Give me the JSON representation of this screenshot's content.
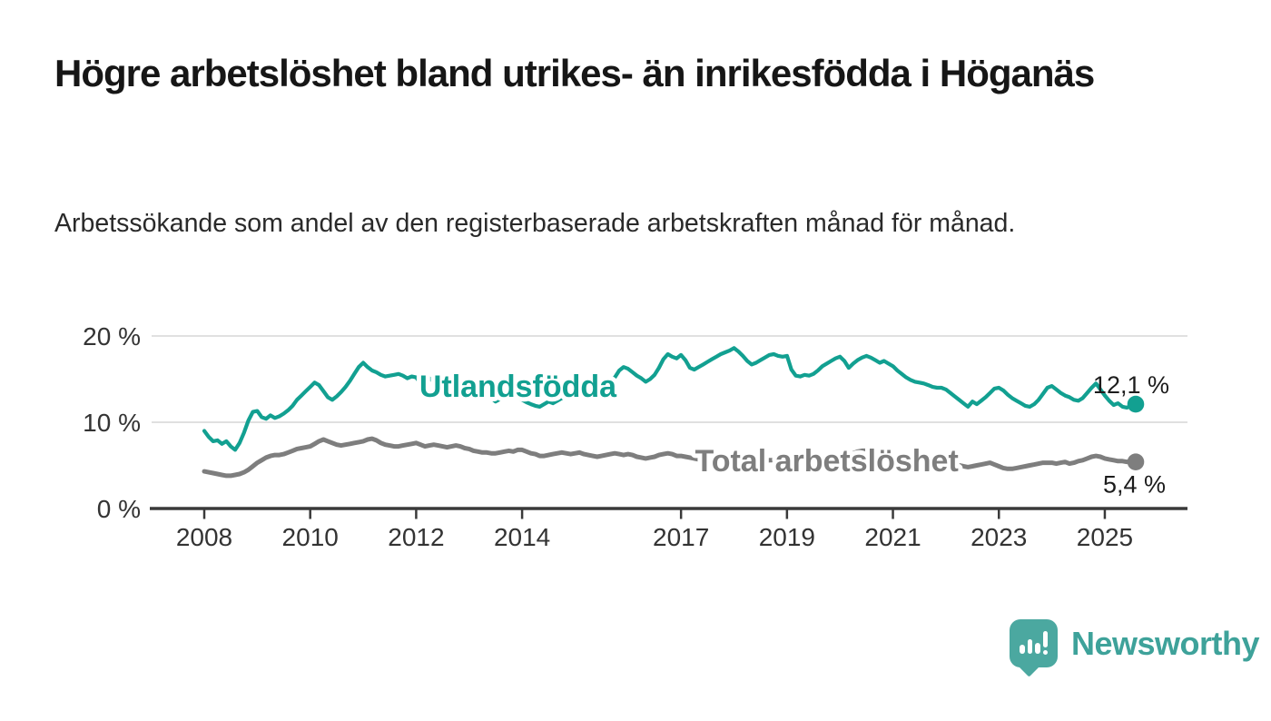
{
  "page": {
    "title": "Högre arbetslöshet bland utrikes- än inrikesfödda i Höganäs",
    "subtitle": "Arbetssökande som andel av den registerbaserade arbetskraften månad för månad."
  },
  "footer": {
    "brand": "Newsworthy",
    "logo_icon": "speech-bubble-bar-chart-icon"
  },
  "chart_data": {
    "type": "line",
    "title": "Högre arbetslöshet bland utrikes- än inrikesfödda i Höganäs",
    "subtitle": "Arbetssökande som andel av den registerbaserade arbetskraften månad för månad.",
    "frequency": "monthly",
    "x_start": "2008-01",
    "x_end": "2025-08",
    "x_tick_labels": [
      "2008",
      "2010",
      "2012",
      "2014",
      "2017",
      "2019",
      "2021",
      "2023",
      "2025"
    ],
    "y_ticks": [
      0,
      10,
      20
    ],
    "y_tick_labels": [
      "0 %",
      "10 %",
      "20 %"
    ],
    "ylim": [
      0,
      21
    ],
    "grid": "horizontal-only",
    "legend": "inline-labels-on-lines",
    "colors": {
      "accent_teal": "#12A091",
      "neutral_gray": "#7E7E7E",
      "gridline": "#E0E0E0",
      "axis": "#3A3A3A",
      "value_label": "#1c1c1c"
    },
    "series": [
      {
        "name": "Utlandsfödda",
        "color": "#12A091",
        "stroke_width": 4.2,
        "label_anchor": {
          "year": 2013.92,
          "value": 14.1
        },
        "end_label": {
          "text": "12,1 %",
          "dx": 37,
          "dy": -12
        },
        "end_value": 12.1,
        "values": [
          9.0,
          8.3,
          7.8,
          7.9,
          7.5,
          7.8,
          7.2,
          6.8,
          7.6,
          8.8,
          10.2,
          11.2,
          11.3,
          10.6,
          10.4,
          10.8,
          10.5,
          10.7,
          11.0,
          11.4,
          11.9,
          12.6,
          13.1,
          13.6,
          14.1,
          14.6,
          14.3,
          13.6,
          12.9,
          12.6,
          13.0,
          13.5,
          14.1,
          14.8,
          15.6,
          16.4,
          16.9,
          16.4,
          16.0,
          15.8,
          15.5,
          15.3,
          15.4,
          15.5,
          15.6,
          15.4,
          15.1,
          15.3,
          15.2,
          14.5,
          14.8,
          15.1,
          14.7,
          14.9,
          14.6,
          14.3,
          14.6,
          14.2,
          14.4,
          14.5,
          14.3,
          14.0,
          13.7,
          13.4,
          13.1,
          12.8,
          12.4,
          12.7,
          13.0,
          13.2,
          13.0,
          12.8,
          12.6,
          12.3,
          12.1,
          11.9,
          11.8,
          12.1,
          12.4,
          12.2,
          12.5,
          12.8,
          13.1,
          13.3,
          13.5,
          13.3,
          13.6,
          13.8,
          14.0,
          13.9,
          14.2,
          14.4,
          14.6,
          15.2,
          16.0,
          16.4,
          16.2,
          15.8,
          15.4,
          15.1,
          14.7,
          15.0,
          15.5,
          16.3,
          17.3,
          17.9,
          17.6,
          17.4,
          17.8,
          17.2,
          16.3,
          16.1,
          16.4,
          16.7,
          17.0,
          17.3,
          17.6,
          17.9,
          18.1,
          18.3,
          18.6,
          18.2,
          17.7,
          17.1,
          16.7,
          16.9,
          17.2,
          17.5,
          17.8,
          17.9,
          17.7,
          17.6,
          17.7,
          16.1,
          15.4,
          15.3,
          15.5,
          15.4,
          15.6,
          16.0,
          16.5,
          16.8,
          17.1,
          17.4,
          17.6,
          17.1,
          16.3,
          16.8,
          17.2,
          17.5,
          17.7,
          17.5,
          17.2,
          16.9,
          17.1,
          16.8,
          16.5,
          16.0,
          15.6,
          15.2,
          14.9,
          14.7,
          14.6,
          14.5,
          14.3,
          14.1,
          14.0,
          14.0,
          13.8,
          13.4,
          13.0,
          12.6,
          12.2,
          11.8,
          12.4,
          12.1,
          12.5,
          12.9,
          13.4,
          13.9,
          14.0,
          13.7,
          13.2,
          12.8,
          12.5,
          12.2,
          11.9,
          11.8,
          12.1,
          12.6,
          13.3,
          14.0,
          14.2,
          13.8,
          13.4,
          13.1,
          12.9,
          12.6,
          12.5,
          12.8,
          13.4,
          14.0,
          14.5,
          13.8,
          13.1,
          12.5,
          12.0,
          12.2,
          11.8,
          11.7,
          11.9,
          12.1
        ]
      },
      {
        "name": "Total arbetslöshet",
        "color": "#7E7E7E",
        "stroke_width": 5,
        "label_anchor": {
          "year": 2019.75,
          "value": 5.45
        },
        "end_label": {
          "text": "5,4 %",
          "dx": 33,
          "dy": 34
        },
        "end_value": 5.4,
        "values": [
          4.3,
          4.2,
          4.1,
          4.0,
          3.9,
          3.8,
          3.8,
          3.9,
          4.0,
          4.2,
          4.5,
          4.9,
          5.3,
          5.6,
          5.9,
          6.1,
          6.2,
          6.2,
          6.3,
          6.5,
          6.7,
          6.9,
          7.0,
          7.1,
          7.2,
          7.5,
          7.8,
          8.0,
          7.8,
          7.6,
          7.4,
          7.3,
          7.4,
          7.5,
          7.6,
          7.7,
          7.8,
          8.0,
          8.1,
          7.9,
          7.6,
          7.4,
          7.3,
          7.2,
          7.2,
          7.3,
          7.4,
          7.5,
          7.6,
          7.4,
          7.2,
          7.3,
          7.4,
          7.3,
          7.2,
          7.1,
          7.2,
          7.3,
          7.2,
          7.0,
          6.9,
          6.7,
          6.6,
          6.5,
          6.5,
          6.4,
          6.4,
          6.5,
          6.6,
          6.7,
          6.6,
          6.8,
          6.8,
          6.6,
          6.4,
          6.3,
          6.1,
          6.1,
          6.2,
          6.3,
          6.4,
          6.5,
          6.4,
          6.3,
          6.4,
          6.5,
          6.3,
          6.2,
          6.1,
          6.0,
          6.1,
          6.2,
          6.3,
          6.4,
          6.3,
          6.2,
          6.3,
          6.2,
          6.0,
          5.9,
          5.8,
          5.9,
          6.0,
          6.2,
          6.3,
          6.4,
          6.3,
          6.1,
          6.1,
          6.0,
          5.9,
          5.8,
          5.7,
          5.6,
          5.7,
          5.8,
          5.9,
          6.0,
          5.9,
          5.8,
          5.8,
          5.7,
          5.6,
          5.5,
          5.4,
          5.3,
          5.4,
          5.5,
          5.6,
          5.6,
          5.5,
          5.4,
          5.4,
          5.3,
          5.2,
          5.1,
          5.1,
          5.0,
          5.1,
          5.2,
          5.3,
          5.4,
          5.5,
          5.6,
          5.7,
          5.9,
          6.1,
          6.4,
          6.6,
          6.7,
          6.7,
          6.6,
          6.5,
          6.3,
          6.2,
          6.1,
          6.0,
          5.9,
          5.8,
          5.7,
          5.6,
          5.5,
          5.4,
          5.3,
          5.3,
          5.2,
          5.2,
          5.1,
          5.1,
          5.0,
          4.9,
          5.0,
          4.9,
          4.8,
          4.9,
          5.0,
          5.1,
          5.2,
          5.3,
          5.1,
          4.9,
          4.7,
          4.6,
          4.6,
          4.7,
          4.8,
          4.9,
          5.0,
          5.1,
          5.2,
          5.3,
          5.3,
          5.3,
          5.2,
          5.3,
          5.4,
          5.2,
          5.3,
          5.5,
          5.6,
          5.8,
          6.0,
          6.1,
          6.0,
          5.8,
          5.7,
          5.6,
          5.5,
          5.5,
          5.4,
          5.5,
          5.4
        ]
      }
    ]
  }
}
